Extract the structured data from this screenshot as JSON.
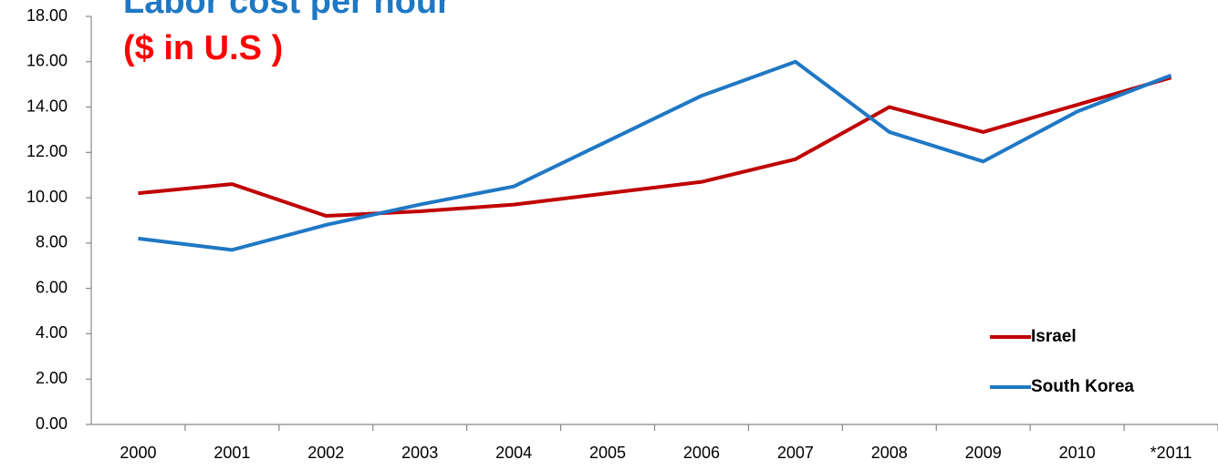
{
  "chart_data": {
    "type": "line",
    "title": "Labor cost per hour",
    "subtitle": "($ in U.S )",
    "categories": [
      "2000",
      "2001",
      "2002",
      "2003",
      "2004",
      "2005",
      "2006",
      "2007",
      "2008",
      "2009",
      "2010",
      "*2011"
    ],
    "series": [
      {
        "name": "Israel",
        "color": "#c00000",
        "values": [
          10.2,
          10.6,
          9.2,
          9.4,
          9.7,
          10.2,
          10.7,
          11.7,
          14.0,
          12.9,
          14.1,
          15.3
        ]
      },
      {
        "name": "South Korea",
        "color": "#1f78c4",
        "values": [
          8.2,
          7.7,
          8.8,
          9.7,
          10.5,
          12.5,
          14.5,
          16.0,
          12.9,
          11.6,
          13.8,
          15.4
        ]
      }
    ],
    "ylim": [
      0,
      18
    ],
    "yticks": [
      {
        "value": 0,
        "label": "0.00"
      },
      {
        "value": 2,
        "label": "2.00"
      },
      {
        "value": 4,
        "label": "4.00"
      },
      {
        "value": 6,
        "label": "6.00"
      },
      {
        "value": 8,
        "label": "8.00"
      },
      {
        "value": 10,
        "label": "10.00"
      },
      {
        "value": 12,
        "label": "12.00"
      },
      {
        "value": 14,
        "label": "14.00"
      },
      {
        "value": 16,
        "label": "16.00"
      },
      {
        "value": 18,
        "label": "18.00"
      }
    ],
    "grid": false,
    "legend": "lower right"
  }
}
